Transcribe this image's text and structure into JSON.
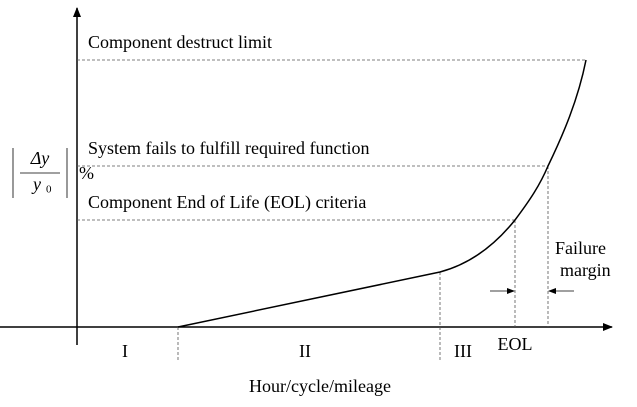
{
  "levels": {
    "destruct": "Component destruct limit",
    "system_fail": "System fails to fulfill required function",
    "eol": "Component End of Life (EOL) criteria"
  },
  "y_label": {
    "numerator": "Δy",
    "denominator": "y",
    "denominator_subscript": "0",
    "unit": "%"
  },
  "x_label": "Hour/cycle/mileage",
  "regions": [
    "I",
    "II",
    "III"
  ],
  "eol_marker": "EOL",
  "failure_margin": [
    "Failure",
    "margin"
  ]
}
